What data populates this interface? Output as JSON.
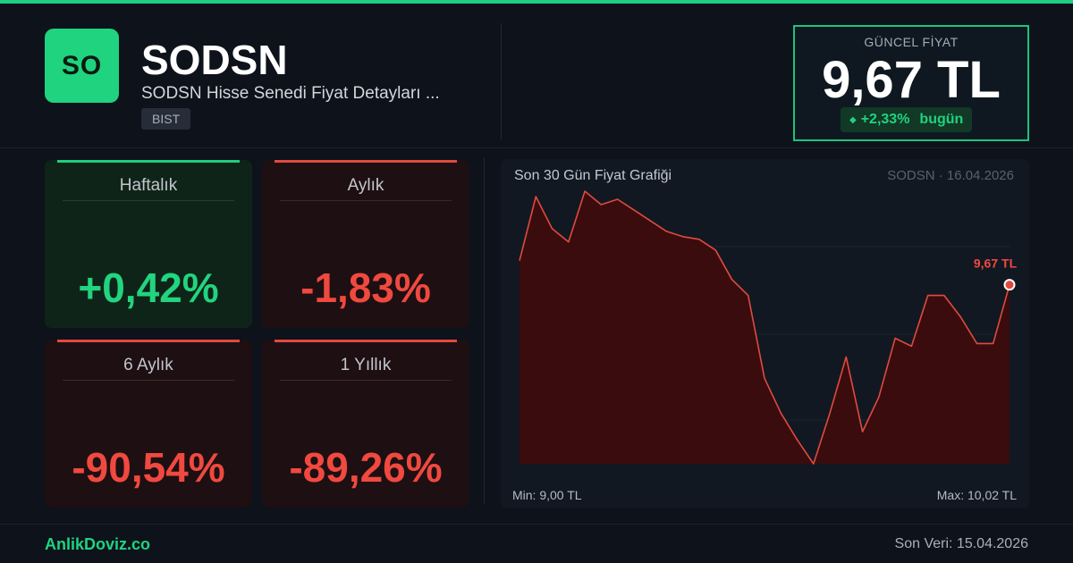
{
  "header": {
    "logo_text": "SO",
    "ticker": "SODSN",
    "subtitle": "SODSN Hisse Senedi Fiyat Detayları ...",
    "exchange": "BIST"
  },
  "price_box": {
    "label": "GÜNCEL FİYAT",
    "value": "9,67 TL",
    "change": "+2,33%",
    "change_suffix": "bugün",
    "up_color": "#1fd37f"
  },
  "stats": [
    {
      "label": "Haftalık",
      "value": "+0,42%",
      "direction": "up"
    },
    {
      "label": "Aylık",
      "value": "-1,83%",
      "direction": "down"
    },
    {
      "label": "6 Aylık",
      "value": "-90,54%",
      "direction": "down"
    },
    {
      "label": "1 Yıllık",
      "value": "-89,26%",
      "direction": "down"
    }
  ],
  "chart_panel": {
    "title": "Son 30 Gün Fiyat Grafiği",
    "meta": "SODSN · 16.04.2026",
    "min_label": "Min: 9,00 TL",
    "max_label": "Max: 10,02 TL",
    "last_label": "9,67 TL"
  },
  "chart_data": {
    "type": "area",
    "title": "Son 30 Gün Fiyat Grafiği",
    "xlabel": "",
    "ylabel": "",
    "ylim": [
      9.0,
      10.02
    ],
    "values": [
      9.76,
      10.0,
      9.88,
      9.83,
      10.02,
      9.97,
      9.99,
      9.95,
      9.91,
      9.87,
      9.85,
      9.84,
      9.8,
      9.69,
      9.63,
      9.32,
      9.19,
      9.09,
      9.0,
      9.19,
      9.4,
      9.12,
      9.25,
      9.47,
      9.44,
      9.63,
      9.63,
      9.55,
      9.45,
      9.45,
      9.67
    ],
    "line_color": "#e04a3e",
    "fill_color": "#3a0c0e",
    "grid": true
  },
  "footer": {
    "brand": "AnlikDoviz.co",
    "last_data": "Son Veri: 15.04.2026"
  }
}
